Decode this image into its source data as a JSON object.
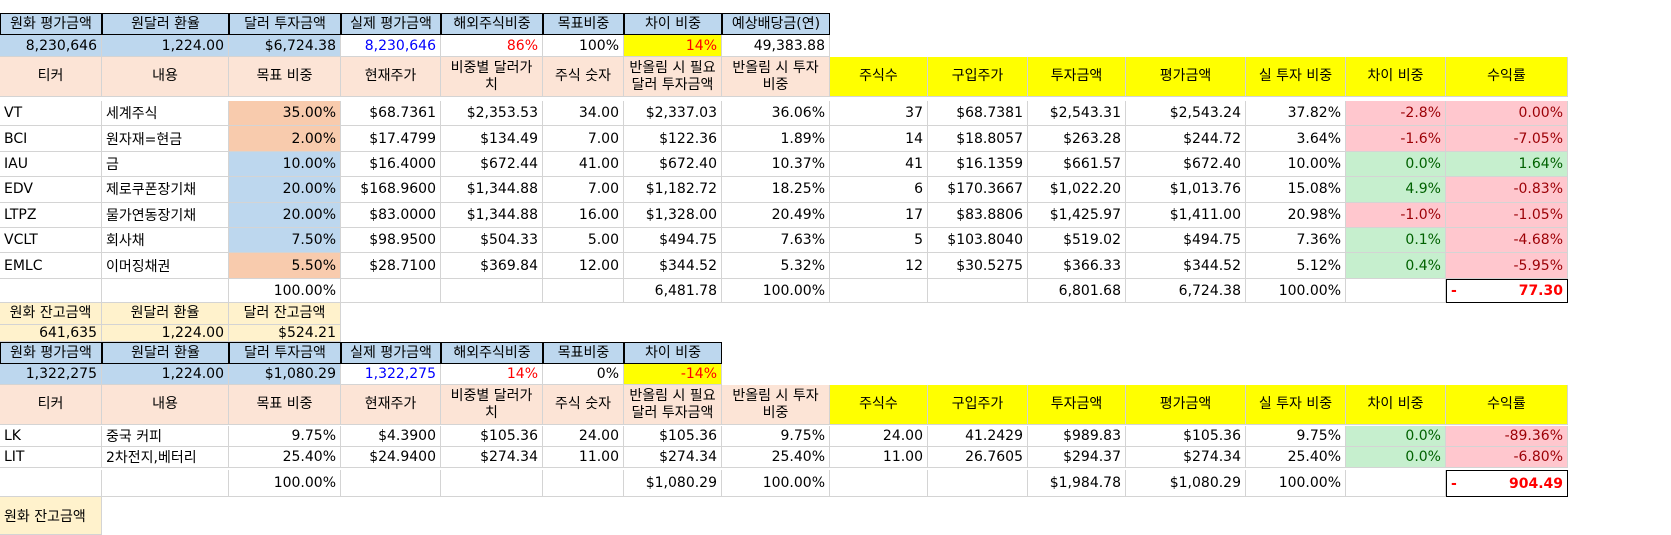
{
  "top": {
    "headers": [
      "원화 평가금액",
      "원달러 환율",
      "달러 투자금액",
      "실제 평가금액",
      "해외주식비중",
      "목표비중",
      "차이 비중",
      "예상배당금(연)"
    ],
    "values": [
      "8,230,646",
      "1,224.00",
      "$6,724.38",
      "8,230,646",
      "86%",
      "100%",
      "14%",
      "49,383.88"
    ]
  },
  "table_headers": [
    "티커",
    "내용",
    "목표 비중",
    "현재주가",
    "비중별 달러가치",
    "주식 숫자",
    "반올림 시 필요 달러 투자금액",
    "반올림 시 투자 비중",
    "주식수",
    "구입주가",
    "투자금액",
    "평가금액",
    "실 투자 비중",
    "차이 비중",
    "수익률"
  ],
  "rows1": [
    [
      "VT",
      "세계주식",
      "35.00%",
      "$68.7361",
      "$2,353.53",
      "34.00",
      "$2,337.03",
      "36.06%",
      "37",
      "$68.7381",
      "$2,543.31",
      "$2,543.24",
      "37.82%",
      "-2.8%",
      "0.00%"
    ],
    [
      "BCI",
      "원자재=현금",
      "2.00%",
      "$17.4799",
      "$134.49",
      "7.00",
      "$122.36",
      "1.89%",
      "14",
      "$18.8057",
      "$263.28",
      "$244.72",
      "3.64%",
      "-1.6%",
      "-7.05%"
    ],
    [
      "IAU",
      "금",
      "10.00%",
      "$16.4000",
      "$672.44",
      "41.00",
      "$672.40",
      "10.37%",
      "41",
      "$16.1359",
      "$661.57",
      "$672.40",
      "10.00%",
      "0.0%",
      "1.64%"
    ],
    [
      "EDV",
      "제로쿠폰장기채",
      "20.00%",
      "$168.9600",
      "$1,344.88",
      "7.00",
      "$1,182.72",
      "18.25%",
      "6",
      "$170.3667",
      "$1,022.20",
      "$1,013.76",
      "15.08%",
      "4.9%",
      "-0.83%"
    ],
    [
      "LTPZ",
      "물가연동장기채",
      "20.00%",
      "$83.0000",
      "$1,344.88",
      "16.00",
      "$1,328.00",
      "20.49%",
      "17",
      "$83.8806",
      "$1,425.97",
      "$1,411.00",
      "20.98%",
      "-1.0%",
      "-1.05%"
    ],
    [
      "VCLT",
      "회사채",
      "7.50%",
      "$98.9500",
      "$504.33",
      "5.00",
      "$494.75",
      "7.63%",
      "5",
      "$103.8040",
      "$519.02",
      "$494.75",
      "7.36%",
      "0.1%",
      "-4.68%"
    ],
    [
      "EMLC",
      "이머징채권",
      "5.50%",
      "$28.7100",
      "$369.84",
      "12.00",
      "$344.52",
      "5.32%",
      "12",
      "$30.5275",
      "$366.33",
      "$344.52",
      "5.12%",
      "0.4%",
      "-5.95%"
    ]
  ],
  "totals1": {
    "target": "100.00%",
    "needed": "6,481.78",
    "invest_pct": "100.00%",
    "invest": "6,801.68",
    "eval": "6,724.38",
    "real_pct": "100.00%",
    "dash": "-",
    "return": "77.30"
  },
  "balance": {
    "headers": [
      "원화 잔고금액",
      "원달러 환율",
      "달러 잔고금액"
    ],
    "values": [
      "641,635",
      "1,224.00",
      "$524.21"
    ]
  },
  "second": {
    "headers": [
      "원화 평가금액",
      "원달러 환율",
      "달러 투자금액",
      "실제 평가금액",
      "해외주식비중",
      "목표비중",
      "차이 비중"
    ],
    "values": [
      "1,322,275",
      "1,224.00",
      "$1,080.29",
      "1,322,275",
      "14%",
      "0%",
      "-14%"
    ]
  },
  "rows2": [
    [
      "LK",
      "중국 커피",
      "9.75%",
      "$4.3900",
      "$105.36",
      "24.00",
      "$105.36",
      "9.75%",
      "24.00",
      "41.2429",
      "$989.83",
      "$105.36",
      "9.75%",
      "0.0%",
      "-89.36%"
    ],
    [
      "LIT",
      "2차전지,베터리",
      "25.40%",
      "$24.9400",
      "$274.34",
      "11.00",
      "$274.34",
      "25.40%",
      "11.00",
      "26.7605",
      "$294.37",
      "$274.34",
      "25.40%",
      "0.0%",
      "-6.80%"
    ]
  ],
  "totals2": {
    "target": "100.00%",
    "needed": "$1,080.29",
    "invest_pct": "100.00%",
    "invest": "$1,984.78",
    "eval": "$1,080.29",
    "real_pct": "100.00%",
    "dash": "-",
    "return": "904.49"
  },
  "bottom_partial": "원화 잔고금액",
  "colors": {
    "header_blue": "#bdd7ee",
    "header_tan": "#fce4d6",
    "header_yellow": "#ffff00",
    "balance_yellow": "#fff2cc",
    "neg_pink": "#ffc7ce",
    "pos_green": "#c6efce",
    "target_orange": "#f8cbad"
  }
}
